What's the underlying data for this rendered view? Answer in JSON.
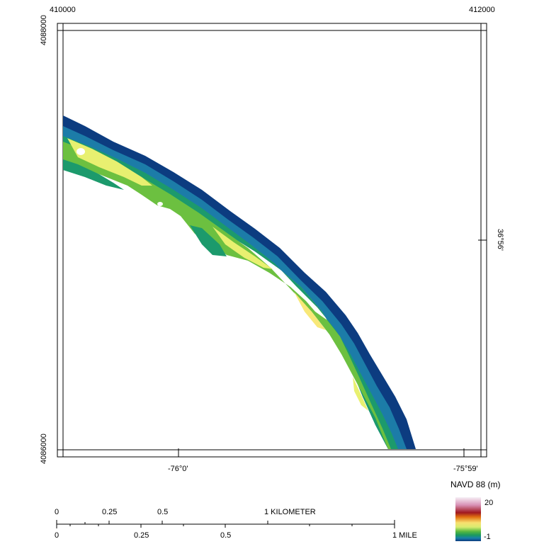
{
  "map": {
    "coords": {
      "easting_left": "410000",
      "easting_right": "412000",
      "northing_top": "4088000",
      "northing_bottom": "4086000",
      "lon_left": "-76°0'",
      "lon_right": "-75°59'",
      "lat_right": "36°56'"
    }
  },
  "legend": {
    "title": "NAVD 88 (m)",
    "max_label": "20",
    "min_label": "-1",
    "colors": [
      "#f2f0f5",
      "#dd88b4",
      "#a8141c",
      "#f07808",
      "#f8e878",
      "#e8f070",
      "#6cc040",
      "#1c9a58",
      "#1c8ca8",
      "#0c3c80"
    ]
  },
  "scale_bar": {
    "km_labels": [
      "0",
      "0.25",
      "0.5",
      "1 KILOMETER"
    ],
    "mile_labels": [
      "0",
      "0.25",
      "0.5",
      "1 MILE"
    ]
  }
}
